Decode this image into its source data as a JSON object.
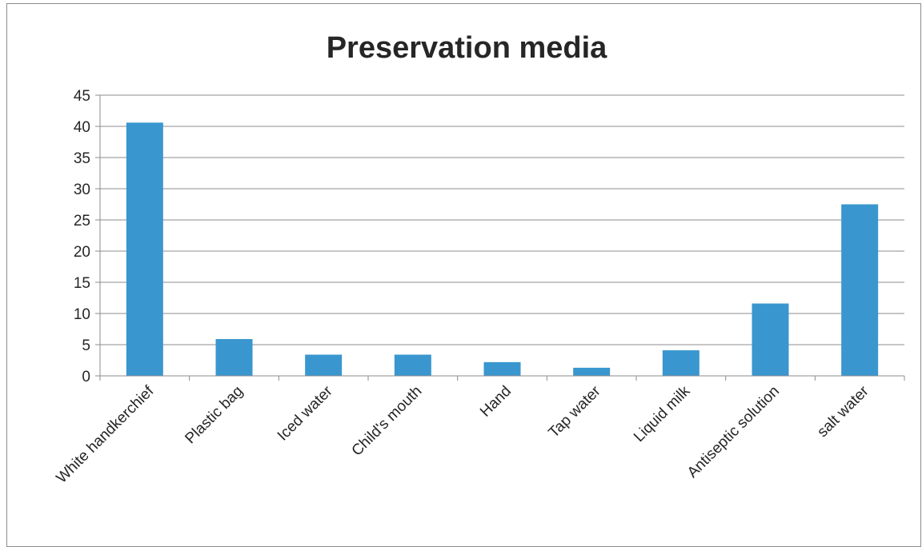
{
  "chart_data": {
    "type": "bar",
    "title": "Preservation media",
    "xlabel": "",
    "ylabel": "",
    "categories": [
      "White handkerchief",
      "Plastic bag",
      "Iced water",
      "Child's mouth",
      "Hand",
      "Tap water",
      "Liquid milk",
      "Antiseptic solution",
      "salt water"
    ],
    "values": [
      40.6,
      5.9,
      3.4,
      3.4,
      2.2,
      1.3,
      4.1,
      11.6,
      27.5
    ],
    "ylim": [
      0,
      45
    ],
    "yticks": [
      "0",
      "5",
      "10",
      "15",
      "20",
      "25",
      "30",
      "35",
      "40",
      "45"
    ],
    "grid": true,
    "legend": "none",
    "bar_color": "#3a96cf",
    "grid_color": "#8c8c8c",
    "axis_color": "#8c8c8c",
    "text_color": "#262626"
  }
}
